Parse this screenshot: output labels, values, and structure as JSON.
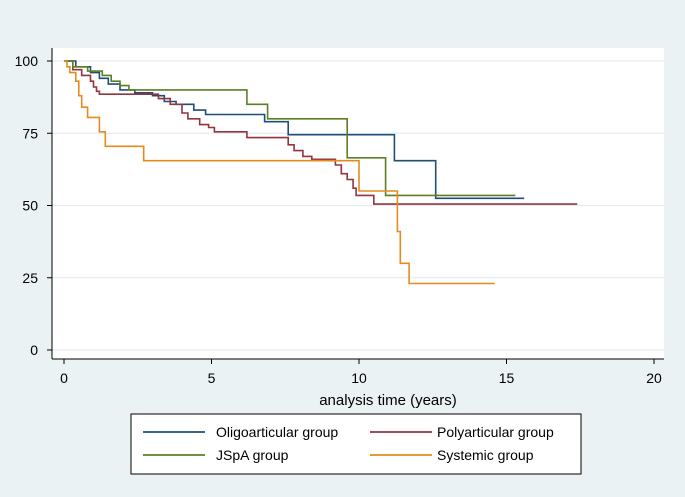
{
  "chart_data": {
    "type": "line",
    "title": "",
    "xlabel": "analysis time (years)",
    "ylabel": "",
    "xlim": [
      0,
      20
    ],
    "ylim": [
      0,
      100
    ],
    "x_ticks": [
      "0",
      "5",
      "10",
      "15",
      "20"
    ],
    "y_ticks": [
      "0",
      "25",
      "50",
      "75",
      "100"
    ],
    "grid": true,
    "legend_position": "bottom",
    "series": [
      {
        "name": "Oligoarticular group",
        "color": "#1f4e79",
        "points": [
          [
            0,
            100
          ],
          [
            0.4,
            98
          ],
          [
            0.9,
            96
          ],
          [
            1.2,
            94
          ],
          [
            1.5,
            92
          ],
          [
            1.9,
            90
          ],
          [
            2.4,
            89
          ],
          [
            3.0,
            88
          ],
          [
            3.4,
            86
          ],
          [
            3.8,
            85
          ],
          [
            4.4,
            83
          ],
          [
            4.8,
            81.5
          ],
          [
            6.8,
            79
          ],
          [
            7.6,
            74.5
          ],
          [
            11.2,
            65.5
          ],
          [
            12.6,
            52.5
          ],
          [
            15.6,
            52.5
          ]
        ]
      },
      {
        "name": "Polyarticular group",
        "color": "#93343f",
        "points": [
          [
            0,
            100
          ],
          [
            0.3,
            97
          ],
          [
            0.6,
            95
          ],
          [
            0.9,
            93
          ],
          [
            1.0,
            91
          ],
          [
            1.1,
            89.5
          ],
          [
            1.2,
            88.5
          ],
          [
            3.2,
            87
          ],
          [
            3.6,
            85
          ],
          [
            4.0,
            82
          ],
          [
            4.2,
            80
          ],
          [
            4.6,
            78
          ],
          [
            4.9,
            77
          ],
          [
            5.1,
            75.5
          ],
          [
            6.2,
            73.5
          ],
          [
            7.6,
            71
          ],
          [
            7.8,
            69
          ],
          [
            8.1,
            67
          ],
          [
            8.4,
            66
          ],
          [
            9.2,
            64
          ],
          [
            9.4,
            61
          ],
          [
            9.6,
            59
          ],
          [
            9.8,
            56
          ],
          [
            9.9,
            53.5
          ],
          [
            10.5,
            50.5
          ],
          [
            17.4,
            50.5
          ]
        ]
      },
      {
        "name": "JSpA group",
        "color": "#5c7f24",
        "points": [
          [
            0,
            100
          ],
          [
            0.3,
            98
          ],
          [
            0.8,
            96.5
          ],
          [
            1.3,
            95
          ],
          [
            1.6,
            93
          ],
          [
            1.9,
            91.5
          ],
          [
            2.2,
            90
          ],
          [
            6.2,
            85
          ],
          [
            6.9,
            80
          ],
          [
            9.6,
            66.5
          ],
          [
            10.9,
            53.5
          ],
          [
            15.3,
            53.5
          ]
        ]
      },
      {
        "name": "Systemic group",
        "color": "#e58b1d",
        "points": [
          [
            0,
            100
          ],
          [
            0.1,
            98
          ],
          [
            0.2,
            96
          ],
          [
            0.4,
            93
          ],
          [
            0.5,
            88
          ],
          [
            0.6,
            84
          ],
          [
            0.8,
            80.5
          ],
          [
            1.2,
            75.5
          ],
          [
            1.4,
            70.5
          ],
          [
            2.7,
            65.5
          ],
          [
            9.5,
            65.5
          ],
          [
            10.0,
            55
          ],
          [
            11.3,
            41
          ],
          [
            11.4,
            30
          ],
          [
            11.7,
            23
          ],
          [
            14.6,
            23
          ]
        ]
      }
    ]
  }
}
